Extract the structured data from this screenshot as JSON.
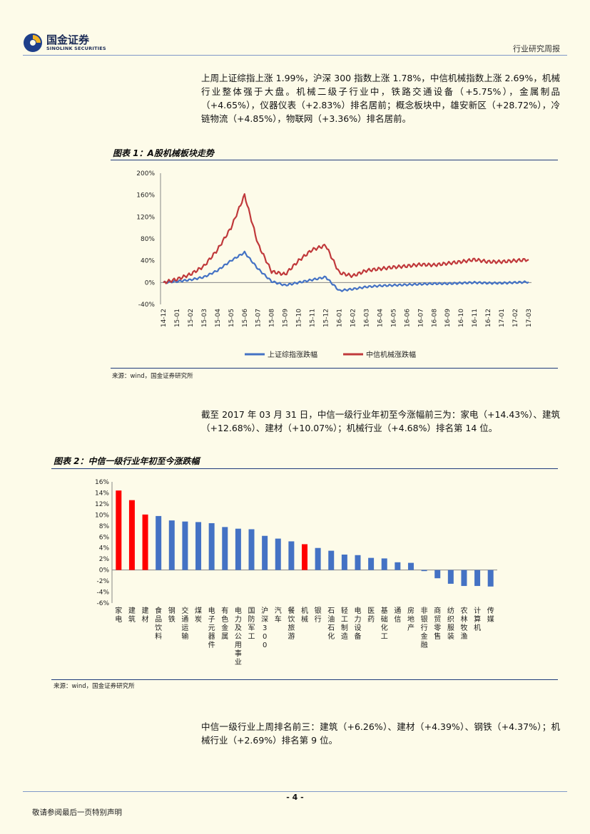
{
  "header": {
    "logo_cn": "国金证券",
    "logo_en": "SINOLINK SECURITIES",
    "report_type": "行业研究周报"
  },
  "paragraph1": "上周上证综指上涨 1.99%，沪深 300 指数上涨 1.78%，中信机械指数上涨 2.69%，机械行业整体强于大盘。机械二级子行业中，铁路交通设备（+5.75%），金属制品（+4.65%），仪器仪表（+2.83%）排名居前；概念板块中，雄安新区（+28.72%），冷链物流（+4.85%），物联网（+3.36%）排名居前。",
  "figure1_title": "图表 1：A股机械板块走势",
  "figure1_source": "来源：wind，国金证券研究所",
  "paragraph2": "截至 2017 年 03 月 31 日，中信一级行业年初至今涨幅前三为：家电（+14.43%）、建筑（+12.68%）、建材（+10.07%）；机械行业（+4.68%）排名第 14 位。",
  "figure2_title": "图表 2：中信一级行业年初至今涨跌幅",
  "figure2_source": "来源：wind，国金证券研究所",
  "paragraph3": "中信一级行业上周排名前三：建筑（+6.26%）、建材（+4.39%）、钢铁（+4.37%）；机械行业（+2.69%）排名第 9 位。",
  "footer": {
    "page": "- 4 -",
    "disclaimer": "敬请参阅最后一页特别声明"
  },
  "chart_data": [
    {
      "type": "line",
      "title": "图表 1：A股机械板块走势",
      "x": [
        "14-12",
        "15-01",
        "15-02",
        "15-03",
        "15-04",
        "15-05",
        "15-06",
        "15-07",
        "15-08",
        "15-09",
        "15-10",
        "15-11",
        "15-12",
        "16-01",
        "16-02",
        "16-03",
        "16-04",
        "16-05",
        "16-06",
        "16-07",
        "16-08",
        "16-09",
        "16-10",
        "16-11",
        "16-12",
        "17-01",
        "17-02",
        "17-03"
      ],
      "ylim": [
        -40,
        200
      ],
      "yticks": [
        "-40%",
        "0%",
        "40%",
        "80%",
        "120%",
        "160%",
        "200%"
      ],
      "ytick_values": [
        -40,
        0,
        40,
        80,
        120,
        160,
        200
      ],
      "colors": {
        "sse": "#4472c4",
        "citic": "#c0393b"
      },
      "series": [
        {
          "name": "上证综指涨跌幅",
          "values": [
            0,
            2,
            5,
            10,
            22,
            40,
            55,
            25,
            2,
            -5,
            0,
            5,
            10,
            -15,
            -12,
            -8,
            -6,
            -5,
            -4,
            -3,
            -2,
            -2,
            -1,
            0,
            -1,
            -1,
            0,
            1
          ]
        },
        {
          "name": "中信机械涨跌幅",
          "values": [
            0,
            6,
            15,
            30,
            60,
            100,
            160,
            70,
            20,
            15,
            40,
            60,
            68,
            18,
            12,
            22,
            25,
            28,
            30,
            33,
            32,
            35,
            38,
            42,
            38,
            38,
            40,
            42
          ]
        }
      ]
    },
    {
      "type": "bar",
      "title": "图表 2：中信一级行业年初至今涨跌幅",
      "ylim": [
        -6,
        16
      ],
      "yticks": [
        "-6%",
        "-4%",
        "-2%",
        "0%",
        "2%",
        "4%",
        "6%",
        "8%",
        "10%",
        "12%",
        "14%",
        "16%"
      ],
      "ytick_values": [
        -6,
        -4,
        -2,
        0,
        2,
        4,
        6,
        8,
        10,
        12,
        14,
        16
      ],
      "colors": {
        "default": "#4472c4",
        "highlight": "#ff0000"
      },
      "categories": [
        "家电",
        "建筑",
        "建材",
        "食品饮料",
        "钢铁",
        "交通运输",
        "煤炭",
        "电子元器件",
        "有色金属",
        "电力及公用事业",
        "国防军工",
        "沪深300",
        "汽车",
        "餐饮旅游",
        "机械",
        "银行",
        "石油石化",
        "轻工制造",
        "电力设备",
        "医药",
        "基础化工",
        "通信",
        "房地产",
        "非银行金融",
        "商贸零售",
        "纺织服装",
        "农林牧渔",
        "计算机",
        "传媒"
      ],
      "values": [
        14.43,
        12.68,
        10.07,
        9.8,
        9.0,
        8.8,
        8.7,
        8.5,
        7.8,
        7.5,
        7.4,
        6.2,
        5.7,
        5.2,
        4.68,
        4.0,
        3.5,
        2.8,
        2.7,
        2.2,
        2.1,
        1.4,
        1.3,
        -0.2,
        -1.5,
        -2.5,
        -2.9,
        -2.9,
        -3.0
      ],
      "highlight": [
        "家电",
        "建筑",
        "建材",
        "机械"
      ]
    }
  ]
}
